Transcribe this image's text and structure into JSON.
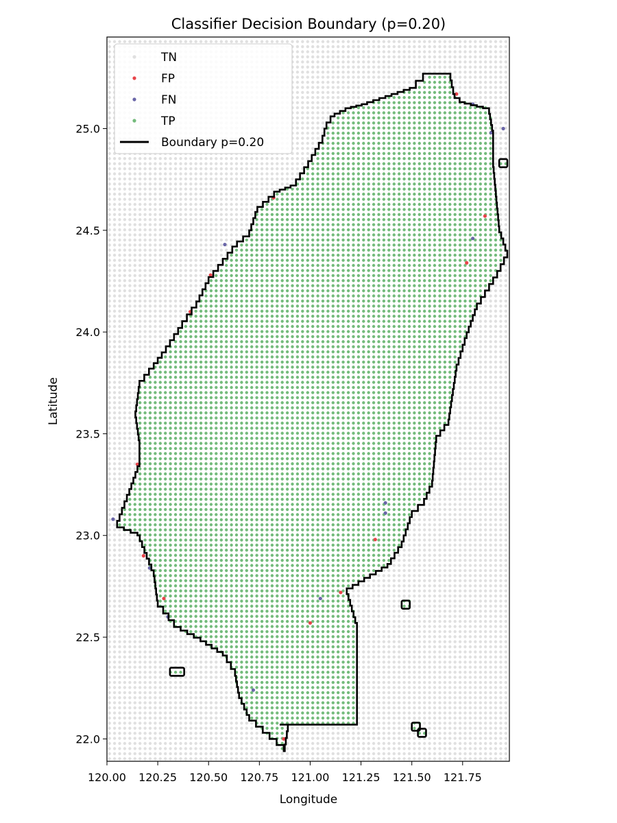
{
  "chart_data": {
    "type": "scatter",
    "title": "Classifier Decision Boundary (p=0.20)",
    "xlabel": "Longitude",
    "ylabel": "Latitude",
    "xlim": [
      120.0,
      121.98
    ],
    "ylim": [
      21.89,
      25.45
    ],
    "xticks": [
      120.0,
      120.25,
      120.5,
      120.75,
      121.0,
      121.25,
      121.5,
      121.75
    ],
    "xtick_labels": [
      "120.00",
      "120.25",
      "120.50",
      "120.75",
      "121.00",
      "121.25",
      "121.50",
      "121.75"
    ],
    "yticks": [
      22.0,
      22.5,
      23.0,
      23.5,
      24.0,
      24.5,
      25.0
    ],
    "ytick_labels": [
      "22.0",
      "22.5",
      "23.0",
      "23.5",
      "24.0",
      "24.5",
      "25.0"
    ],
    "grid": false,
    "legend_position": "upper-left",
    "grid_step": 0.025,
    "series": [
      {
        "name": "TN",
        "color": "#e0e0e0"
      },
      {
        "name": "FP",
        "color": "#e8444a"
      },
      {
        "name": "FN",
        "color": "#6a66a8"
      },
      {
        "name": "TP",
        "color": "#74bb7c"
      },
      {
        "name": "Boundary p=0.20",
        "color": "#000000",
        "style": "line"
      }
    ],
    "boundary_main": [
      [
        120.85,
        22.07
      ],
      [
        121.23,
        22.07
      ],
      [
        121.23,
        22.18
      ],
      [
        121.23,
        22.57
      ],
      [
        121.18,
        22.74
      ],
      [
        121.38,
        22.86
      ],
      [
        121.45,
        22.97
      ],
      [
        121.5,
        23.12
      ],
      [
        121.56,
        23.18
      ],
      [
        121.6,
        23.27
      ],
      [
        121.62,
        23.49
      ],
      [
        121.68,
        23.57
      ],
      [
        121.72,
        23.84
      ],
      [
        121.76,
        23.97
      ],
      [
        121.82,
        24.14
      ],
      [
        121.92,
        24.3
      ],
      [
        121.97,
        24.4
      ],
      [
        121.93,
        24.52
      ],
      [
        121.9,
        24.84
      ],
      [
        121.9,
        24.99
      ],
      [
        121.88,
        25.1
      ],
      [
        121.76,
        25.13
      ],
      [
        121.71,
        25.17
      ],
      [
        121.69,
        25.27
      ],
      [
        121.59,
        25.27
      ],
      [
        121.52,
        25.2
      ],
      [
        121.37,
        25.15
      ],
      [
        121.28,
        25.12
      ],
      [
        121.2,
        25.1
      ],
      [
        121.12,
        25.06
      ],
      [
        121.08,
        25.0
      ],
      [
        121.06,
        24.93
      ],
      [
        120.99,
        24.81
      ],
      [
        120.93,
        24.72
      ],
      [
        120.85,
        24.69
      ],
      [
        120.74,
        24.59
      ],
      [
        120.7,
        24.47
      ],
      [
        120.64,
        24.42
      ],
      [
        120.57,
        24.33
      ],
      [
        120.5,
        24.24
      ],
      [
        120.44,
        24.12
      ],
      [
        120.37,
        24.02
      ],
      [
        120.29,
        23.9
      ],
      [
        120.23,
        23.82
      ],
      [
        120.16,
        23.73
      ],
      [
        120.14,
        23.58
      ],
      [
        120.16,
        23.44
      ],
      [
        120.16,
        23.34
      ],
      [
        120.11,
        23.2
      ],
      [
        120.05,
        23.04
      ],
      [
        120.15,
        23.0
      ],
      [
        120.23,
        22.8
      ],
      [
        120.25,
        22.65
      ],
      [
        120.33,
        22.55
      ],
      [
        120.46,
        22.48
      ],
      [
        120.57,
        22.41
      ],
      [
        120.63,
        22.31
      ],
      [
        120.65,
        22.2
      ],
      [
        120.7,
        22.09
      ],
      [
        120.8,
        22.0
      ],
      [
        120.87,
        21.94
      ],
      [
        120.89,
        22.07
      ]
    ],
    "boundary_islands": [
      [
        [
          120.31,
          22.31
        ],
        [
          120.38,
          22.31
        ],
        [
          120.38,
          22.35
        ],
        [
          120.31,
          22.35
        ]
      ],
      [
        [
          121.45,
          22.64
        ],
        [
          121.49,
          22.64
        ],
        [
          121.49,
          22.68
        ],
        [
          121.45,
          22.68
        ]
      ],
      [
        [
          121.5,
          22.04
        ],
        [
          121.54,
          22.04
        ],
        [
          121.54,
          22.08
        ],
        [
          121.5,
          22.08
        ]
      ],
      [
        [
          121.53,
          22.01
        ],
        [
          121.57,
          22.01
        ],
        [
          121.57,
          22.05
        ],
        [
          121.53,
          22.05
        ]
      ],
      [
        [
          121.93,
          24.81
        ],
        [
          121.97,
          24.81
        ],
        [
          121.97,
          24.85
        ],
        [
          121.93,
          24.85
        ]
      ]
    ],
    "fp_points": [
      [
        120.15,
        23.35
      ],
      [
        120.18,
        22.9
      ],
      [
        120.28,
        22.69
      ],
      [
        120.41,
        24.1
      ],
      [
        120.51,
        24.28
      ],
      [
        120.82,
        24.66
      ],
      [
        120.87,
        22.0
      ],
      [
        121.0,
        22.57
      ],
      [
        121.15,
        22.72
      ],
      [
        121.32,
        22.98
      ],
      [
        121.72,
        25.17
      ],
      [
        121.77,
        24.34
      ],
      [
        121.86,
        24.57
      ]
    ],
    "fn_points": [
      [
        120.03,
        23.08
      ],
      [
        120.21,
        22.84
      ],
      [
        120.3,
        22.6
      ],
      [
        120.58,
        24.43
      ],
      [
        120.72,
        22.24
      ],
      [
        121.05,
        22.69
      ],
      [
        121.37,
        23.11
      ],
      [
        121.37,
        23.16
      ],
      [
        121.8,
        24.46
      ],
      [
        121.8,
        25.12
      ],
      [
        121.89,
        24.98
      ],
      [
        121.95,
        25.0
      ]
    ]
  }
}
